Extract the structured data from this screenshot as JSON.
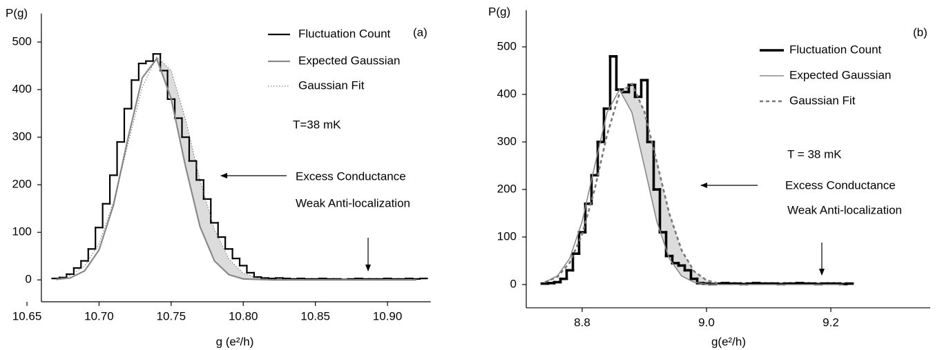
{
  "chart_data": [
    {
      "type": "line",
      "panel": "(a)",
      "ylabel": "P(g)",
      "xlabel": "g (e²/h)",
      "annotations": [
        "T=38 mK",
        "Excess Conductance",
        "Weak Anti-localization"
      ],
      "xlim": [
        10.66,
        10.93
      ],
      "ylim": [
        -46,
        560
      ],
      "xticks": [
        10.65,
        {
          "value": 10.7,
          "label": "10.70"
        },
        10.75,
        {
          "value": 10.8,
          "label": "10.80"
        },
        10.85,
        {
          "value": 10.9,
          "label": "10.90"
        }
      ],
      "yticks": [
        0,
        100,
        200,
        300,
        400,
        500
      ],
      "series": [
        {
          "name": "Fluctuation Count",
          "color": "#000000",
          "style": "step",
          "x": [
            10.67,
            10.675,
            10.68,
            10.685,
            10.69,
            10.695,
            10.7,
            10.705,
            10.71,
            10.715,
            10.72,
            10.725,
            10.73,
            10.735,
            10.74,
            10.745,
            10.75,
            10.755,
            10.76,
            10.765,
            10.77,
            10.775,
            10.78,
            10.785,
            10.79,
            10.795,
            10.8,
            10.805,
            10.81,
            10.815,
            10.82,
            10.825,
            10.83,
            10.835,
            10.84,
            10.845,
            10.85,
            10.855,
            10.86,
            10.865,
            10.87,
            10.875,
            10.88,
            10.885,
            10.89,
            10.895,
            10.9,
            10.905,
            10.91,
            10.915,
            10.92,
            10.925
          ],
          "values": [
            3,
            5,
            12,
            25,
            40,
            65,
            110,
            160,
            220,
            290,
            360,
            420,
            455,
            460,
            475,
            440,
            380,
            340,
            300,
            250,
            210,
            170,
            120,
            90,
            65,
            45,
            30,
            15,
            6,
            4,
            3,
            4,
            3,
            2,
            3,
            2,
            2,
            3,
            2,
            2,
            1,
            2,
            3,
            2,
            2,
            2,
            3,
            2,
            2,
            3,
            2,
            3
          ]
        },
        {
          "name": "Expected Gaussian",
          "color": "#888888",
          "style": "solid",
          "x": [
            10.67,
            10.68,
            10.69,
            10.7,
            10.71,
            10.72,
            10.73,
            10.74,
            10.75,
            10.76,
            10.77,
            10.78,
            10.79,
            10.8,
            10.81,
            10.82,
            10.83,
            10.84,
            10.85,
            10.86,
            10.87,
            10.88,
            10.89,
            10.9,
            10.91,
            10.92
          ],
          "values": [
            1,
            4,
            19,
            63,
            157,
            297,
            425,
            465,
            381,
            238,
            112,
            40,
            11,
            2,
            1,
            0,
            0,
            0,
            0,
            0,
            0,
            0,
            0,
            0,
            0,
            0
          ]
        },
        {
          "name": "Gaussian Fit",
          "color": "#666666",
          "style": "dotted",
          "x": [
            10.67,
            10.68,
            10.69,
            10.7,
            10.71,
            10.72,
            10.73,
            10.74,
            10.75,
            10.76,
            10.77,
            10.78,
            10.79,
            10.8,
            10.81,
            10.82,
            10.83
          ],
          "values": [
            2,
            9,
            29,
            76,
            163,
            285,
            405,
            469,
            440,
            337,
            209,
            106,
            44,
            14,
            4,
            1,
            0
          ]
        }
      ]
    },
    {
      "type": "line",
      "panel": "(b)",
      "ylabel": "P(g)",
      "xlabel": "g(e²/h)",
      "annotations": [
        "T = 38 mK",
        "Excess Conductance",
        "Weak Anti-localization"
      ],
      "xlim": [
        8.71,
        9.36
      ],
      "ylim": [
        -49,
        577
      ],
      "xticks": [
        8.8,
        {
          "value": 9,
          "label": "9.0"
        },
        9.2
      ],
      "yticks": [
        0,
        100,
        200,
        300,
        400,
        500
      ],
      "series": [
        {
          "name": "Fluctuation Count",
          "color": "#000000",
          "style": "step",
          "x": [
            8.74,
            8.75,
            8.76,
            8.77,
            8.78,
            8.79,
            8.8,
            8.81,
            8.82,
            8.83,
            8.84,
            8.85,
            8.86,
            8.87,
            8.88,
            8.89,
            8.9,
            8.91,
            8.92,
            8.93,
            8.94,
            8.95,
            8.96,
            8.97,
            8.98,
            8.99,
            9,
            9.01,
            9.02,
            9.03,
            9.04,
            9.05,
            9.06,
            9.07,
            9.08,
            9.09,
            9.1,
            9.11,
            9.12,
            9.13,
            9.14,
            9.15,
            9.16,
            9.17,
            9.18,
            9.19,
            9.2,
            9.21,
            9.22,
            9.23
          ],
          "values": [
            2,
            3,
            5,
            12,
            30,
            65,
            110,
            170,
            230,
            300,
            370,
            480,
            410,
            405,
            420,
            395,
            430,
            300,
            200,
            110,
            60,
            45,
            40,
            30,
            12,
            3,
            2,
            1,
            2,
            3,
            2,
            2,
            1,
            2,
            3,
            2,
            2,
            2,
            1,
            2,
            2,
            3,
            2,
            2,
            1,
            2,
            2,
            2,
            1,
            2
          ]
        },
        {
          "name": "Expected Gaussian",
          "color": "#888888",
          "style": "solid",
          "x": [
            8.74,
            8.76,
            8.78,
            8.8,
            8.82,
            8.84,
            8.86,
            8.88,
            8.9,
            8.92,
            8.94,
            8.96,
            8.98,
            9,
            9.02,
            9.04,
            9.06,
            9.08,
            9.1,
            9.12,
            9.14,
            9.16,
            9.18,
            9.2,
            9.22
          ],
          "values": [
            5,
            18,
            55,
            133,
            249,
            362,
            410,
            362,
            249,
            133,
            55,
            18,
            5,
            1,
            0,
            0,
            0,
            0,
            0,
            0,
            0,
            0,
            0,
            0,
            0
          ]
        },
        {
          "name": "Gaussian Fit",
          "color": "#777777",
          "style": "dashed",
          "x": [
            8.74,
            8.76,
            8.78,
            8.8,
            8.82,
            8.84,
            8.86,
            8.88,
            8.9,
            8.92,
            8.94,
            8.96,
            8.98,
            9,
            9.02
          ],
          "values": [
            5,
            16,
            46,
            106,
            200,
            315,
            402,
            422,
            364,
            258,
            150,
            72,
            28,
            9,
            2
          ]
        }
      ]
    }
  ]
}
